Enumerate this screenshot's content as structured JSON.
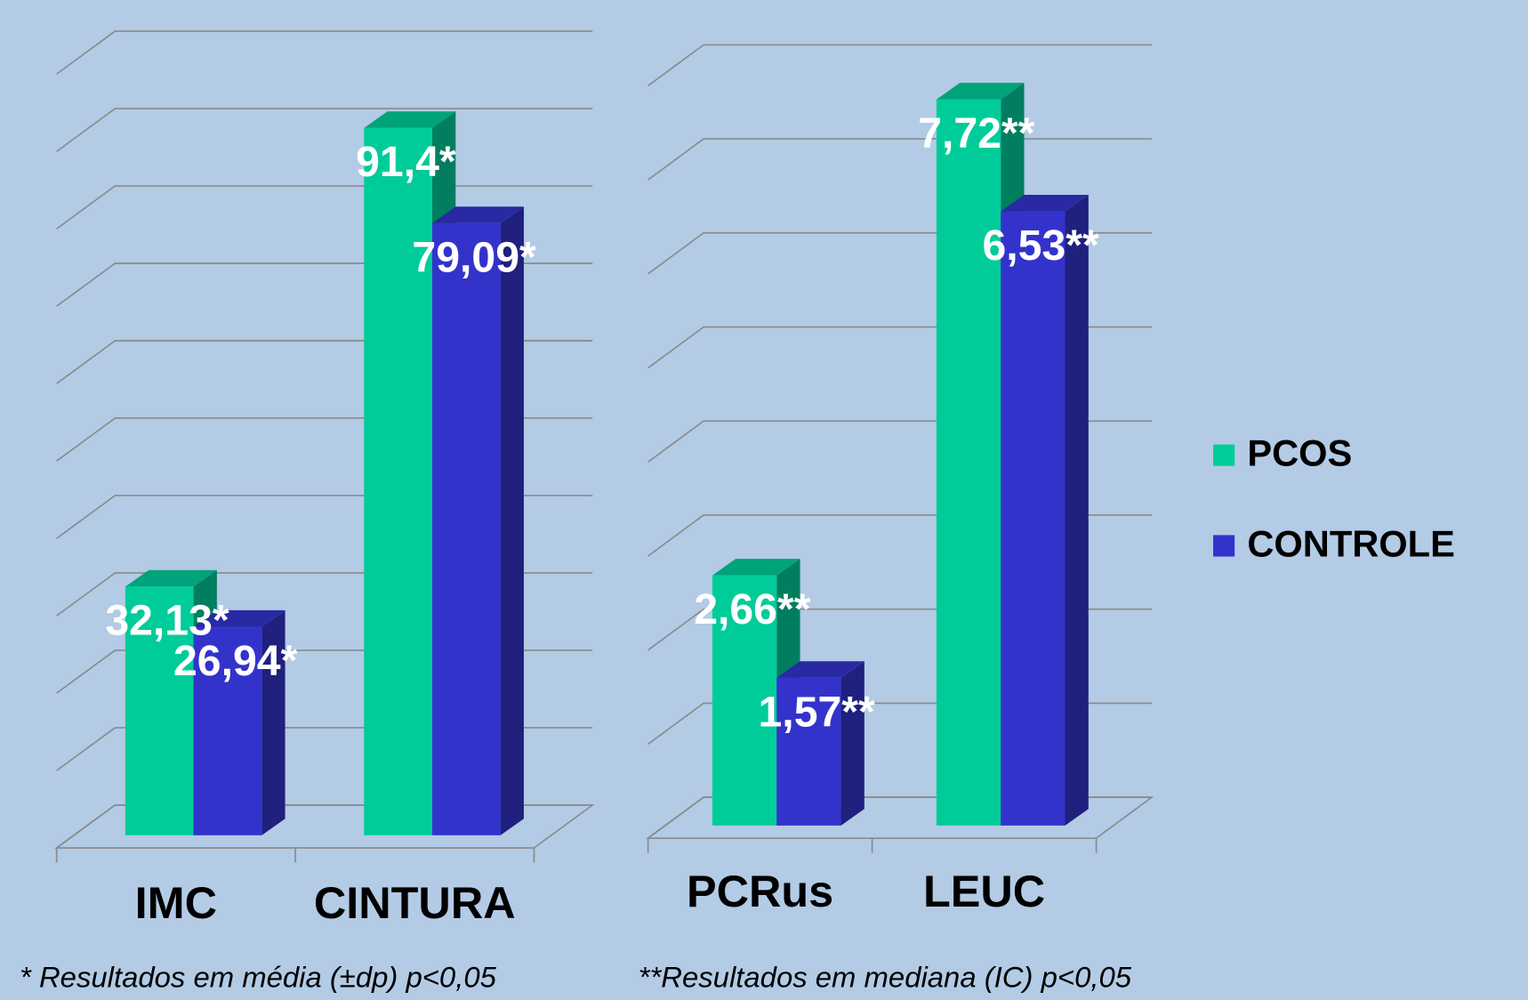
{
  "chart_data": [
    {
      "type": "bar3d",
      "categories": [
        "IMC",
        "CINTURA"
      ],
      "series": [
        {
          "color": "#00cc99",
          "values": [
            32.13,
            91.4
          ],
          "value_labels": [
            "32,13*",
            "91,4*"
          ]
        },
        {
          "color": "#3333cc",
          "values": [
            26.94,
            79.09
          ],
          "value_labels": [
            "26,94*",
            "79,09*"
          ]
        }
      ],
      "ylim": [
        0,
        100
      ],
      "yticks": [
        0,
        10,
        20,
        30,
        40,
        50,
        60,
        70,
        80,
        90,
        100
      ],
      "grid": true,
      "footnote": "* Resultados em  média  (±dp) p<0,05"
    },
    {
      "type": "bar3d",
      "categories": [
        "PCRus",
        "LEUC"
      ],
      "series": [
        {
          "name": "PCOS",
          "color": "#00cc99",
          "values": [
            2.66,
            7.72
          ],
          "value_labels": [
            "2,66**",
            "7,72**"
          ]
        },
        {
          "name": "CONTROLE",
          "color": "#3333cc",
          "values": [
            1.57,
            6.53
          ],
          "value_labels": [
            "1,57**",
            "6,53**"
          ]
        }
      ],
      "ylim": [
        0,
        8
      ],
      "yticks": [
        0,
        1,
        2,
        3,
        4,
        5,
        6,
        7,
        8
      ],
      "grid": true,
      "legend": "right",
      "footnote": "**Resultados em  mediana  (IC) p<0,05"
    }
  ]
}
